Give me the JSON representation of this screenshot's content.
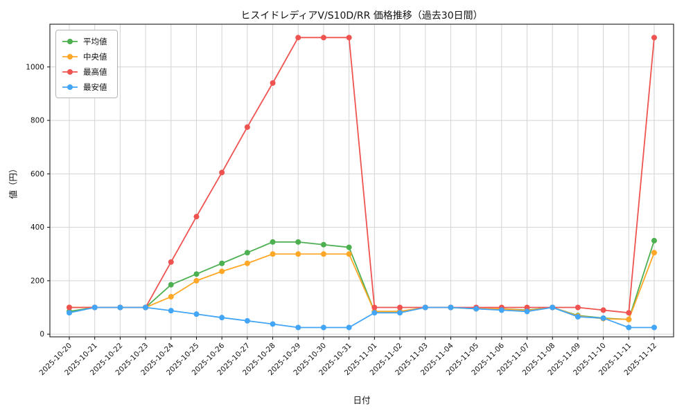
{
  "chart_data": {
    "type": "line",
    "title": "ヒスイドレディアV/S10D/RR 価格推移（過去30日間）",
    "xlabel": "日付",
    "ylabel": "値（円）",
    "grid": true,
    "legend_position": "upper-left",
    "marker": "circle",
    "ylim": [
      -10,
      1160
    ],
    "yticks": [
      0,
      200,
      400,
      600,
      800,
      1000
    ],
    "x": [
      "2025-10-20",
      "2025-10-21",
      "2025-10-22",
      "2025-10-23",
      "2025-10-24",
      "2025-10-25",
      "2025-10-26",
      "2025-10-27",
      "2025-10-28",
      "2025-10-29",
      "2025-10-30",
      "2025-10-31",
      "2025-11-01",
      "2025-11-02",
      "2025-11-03",
      "2025-11-04",
      "2025-11-05",
      "2025-11-06",
      "2025-11-07",
      "2025-11-08",
      "2025-11-09",
      "2025-11-10",
      "2025-11-11",
      "2025-11-12"
    ],
    "series": [
      {
        "key": "avg",
        "name": "平均値",
        "color": "#4caf50",
        "values": [
          85,
          100,
          100,
          100,
          185,
          225,
          265,
          305,
          345,
          345,
          335,
          325,
          85,
          85,
          100,
          100,
          95,
          95,
          90,
          100,
          70,
          60,
          55,
          350
        ]
      },
      {
        "key": "median",
        "name": "中央値",
        "color": "#ffa726",
        "values": [
          100,
          100,
          100,
          100,
          140,
          200,
          235,
          265,
          300,
          300,
          300,
          300,
          85,
          85,
          100,
          100,
          95,
          95,
          88,
          100,
          68,
          58,
          55,
          305
        ]
      },
      {
        "key": "max",
        "name": "最高値",
        "color": "#ef5350",
        "values": [
          100,
          100,
          100,
          100,
          270,
          440,
          605,
          775,
          940,
          1110,
          1110,
          1110,
          100,
          100,
          100,
          100,
          100,
          100,
          100,
          100,
          100,
          90,
          80,
          1110
        ]
      },
      {
        "key": "min",
        "name": "最安値",
        "color": "#42a5f5",
        "values": [
          80,
          100,
          100,
          100,
          88,
          75,
          62,
          50,
          38,
          25,
          25,
          25,
          80,
          80,
          100,
          100,
          95,
          90,
          85,
          100,
          65,
          60,
          25,
          25
        ]
      }
    ]
  }
}
